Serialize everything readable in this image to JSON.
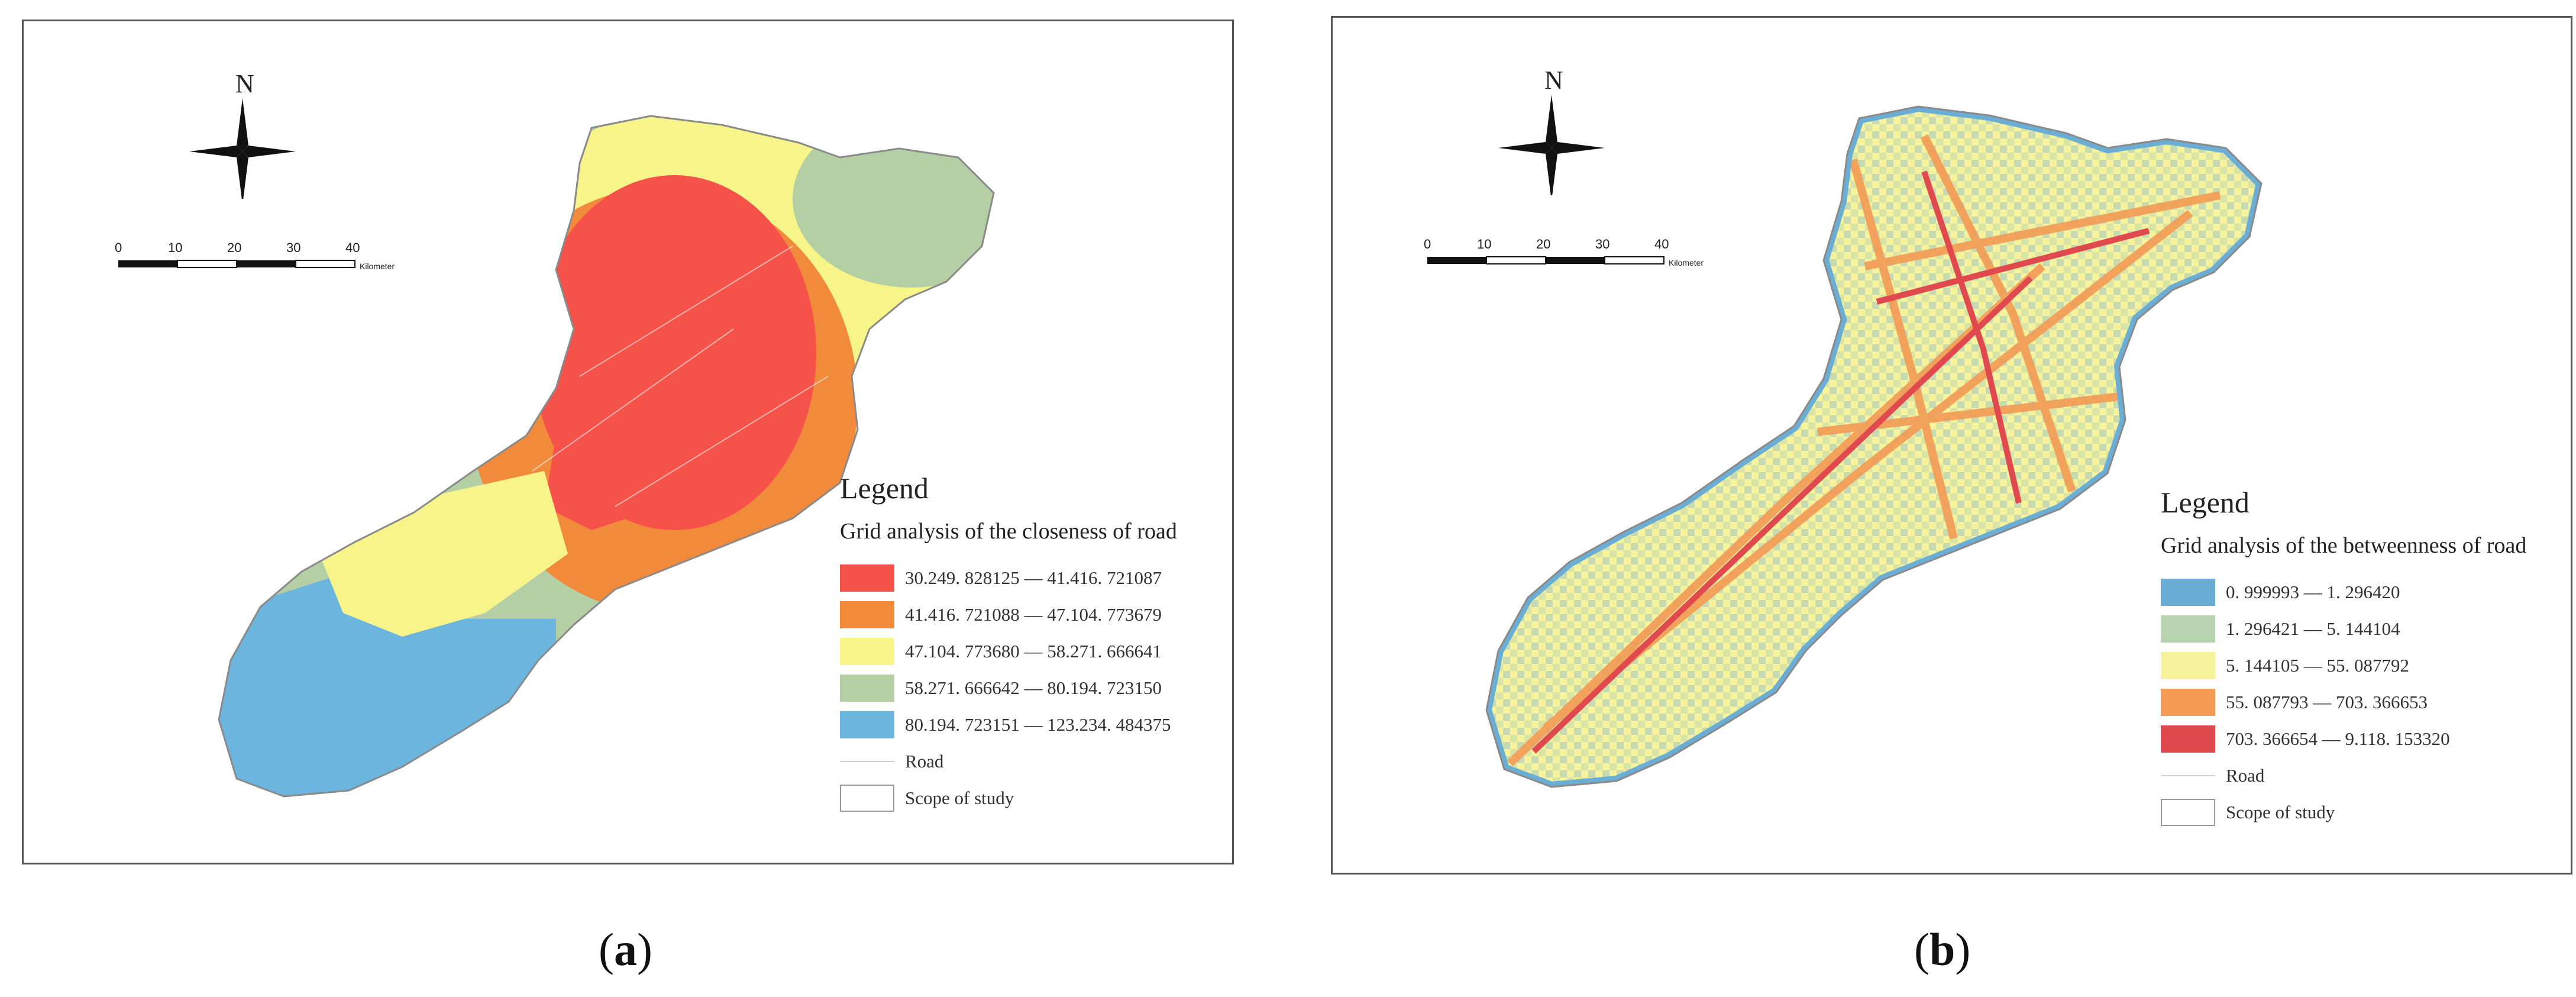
{
  "panels": [
    {
      "id": "a",
      "caption": "a",
      "north_label": "N",
      "scale": {
        "ticks": [
          "0",
          "10",
          "20",
          "30",
          "40"
        ],
        "unit": "Kilometer"
      },
      "legend": {
        "title": "Legend",
        "subtitle": "Grid analysis of the closeness of road",
        "classes": [
          {
            "label": "30.249. 828125 — 41.416. 721087",
            "color": "#f5524a"
          },
          {
            "label": "41.416. 721088 — 47.104. 773679",
            "color": "#f28a3c"
          },
          {
            "label": "47.104. 773680 — 58.271. 666641",
            "color": "#f7f48a"
          },
          {
            "label": "58.271. 666642 — 80.194. 723150",
            "color": "#b5cfa5"
          },
          {
            "label": "80.194. 723151 — 123.234. 484375",
            "color": "#6bb5de"
          }
        ],
        "road_label": "Road",
        "scope_label": "Scope of study"
      }
    },
    {
      "id": "b",
      "caption": "b",
      "north_label": "N",
      "scale": {
        "ticks": [
          "0",
          "10",
          "20",
          "30",
          "40"
        ],
        "unit": "Kilometer"
      },
      "legend": {
        "title": "Legend",
        "subtitle": "Grid analysis of the betweenness of road",
        "classes": [
          {
            "label": "0. 999993 — 1. 296420",
            "color": "#6aaed6"
          },
          {
            "label": "1. 296421 — 5. 144104",
            "color": "#b9d4b0"
          },
          {
            "label": "5. 144105 — 55. 087792",
            "color": "#f7f29c"
          },
          {
            "label": "55. 087793 — 703. 366653",
            "color": "#f39b55"
          },
          {
            "label": "703. 366654 — 9.118. 153320",
            "color": "#e0494d"
          }
        ],
        "road_label": "Road",
        "scope_label": "Scope of study"
      }
    }
  ]
}
